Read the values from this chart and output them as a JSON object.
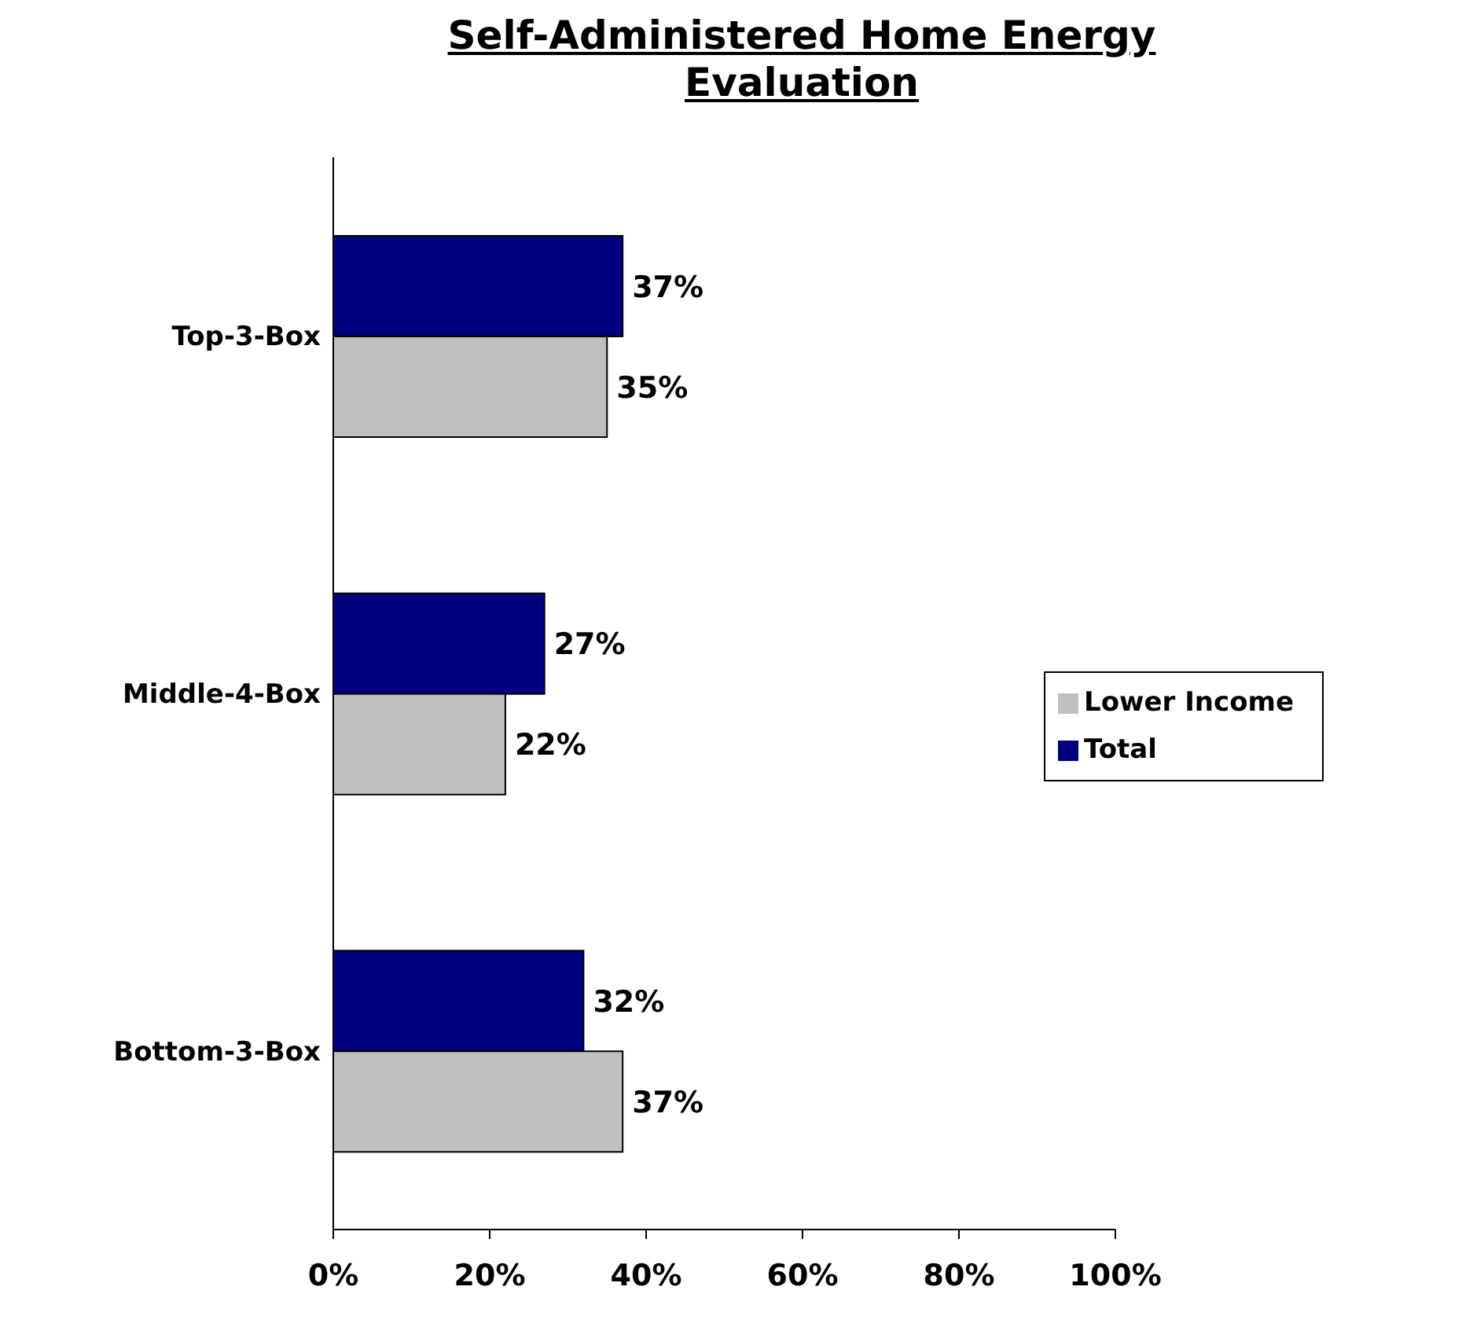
{
  "chart_data": {
    "type": "bar",
    "orientation": "horizontal",
    "title": "Self-Administered Home Energy Evaluation",
    "categories": [
      "Top-3-Box",
      "Middle-4-Box",
      "Bottom-3-Box"
    ],
    "series": [
      {
        "name": "Total",
        "color": "#000080",
        "values": [
          37,
          27,
          32
        ],
        "value_labels": [
          "37%",
          "27%",
          "32%"
        ]
      },
      {
        "name": "Lower Income",
        "color": "#c0c0c0",
        "values": [
          35,
          22,
          37
        ],
        "value_labels": [
          "35%",
          "22%",
          "37%"
        ]
      }
    ],
    "xlim": [
      0,
      100
    ],
    "xticks": [
      {
        "value": 0,
        "label": "0%"
      },
      {
        "value": 20,
        "label": "20%"
      },
      {
        "value": 40,
        "label": "40%"
      },
      {
        "value": 60,
        "label": "60%"
      },
      {
        "value": 80,
        "label": "80%"
      },
      {
        "value": 100,
        "label": "100%"
      }
    ],
    "grid": false,
    "legend": "right"
  }
}
